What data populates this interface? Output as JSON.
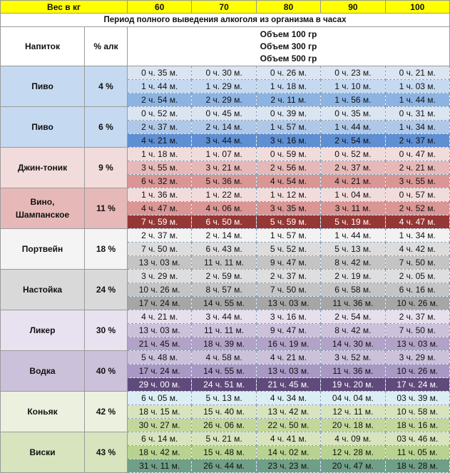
{
  "header": {
    "weight_label": "Вес в кг",
    "weights": [
      "60",
      "70",
      "80",
      "90",
      "100"
    ]
  },
  "title": "Период полного выведения алкоголя из организма в часах",
  "columns": {
    "drink": "Напиток",
    "alcohol": "% алк",
    "volumes": [
      "Объем 100 гр",
      "Объем 300 гр",
      "Объем 500 гр"
    ]
  },
  "rows": [
    {
      "drink": "Пиво",
      "alcohol": "4 %",
      "times": [
        [
          "0 ч. 35 м.",
          "0 ч. 30 м.",
          "0 ч. 26 м.",
          "0 ч. 23 м.",
          "0 ч. 21 м."
        ],
        [
          "1 ч. 44 м.",
          "1 ч. 29 м.",
          "1 ч. 18 м.",
          "1 ч. 10 м.",
          "1 ч. 03 м."
        ],
        [
          "2 ч. 54 м.",
          "2 ч. 29 м.",
          "2 ч. 11 м.",
          "1 ч. 56 м.",
          "1 ч. 44 м."
        ]
      ]
    },
    {
      "drink": "Пиво",
      "alcohol": "6 %",
      "times": [
        [
          "0 ч. 52 м.",
          "0 ч. 45 м.",
          "0 ч. 39 м.",
          "0 ч. 35 м.",
          "0 ч. 31 м."
        ],
        [
          "2 ч. 37 м.",
          "2 ч. 14 м.",
          "1 ч. 57 м.",
          "1 ч. 44 м.",
          "1 ч. 34 м."
        ],
        [
          "4 ч. 21 м.",
          "3 ч. 44 м.",
          "3 ч. 16 м.",
          "2 ч. 54 м.",
          "2 ч. 37 м."
        ]
      ]
    },
    {
      "drink": "Джин-тоник",
      "alcohol": "9 %",
      "times": [
        [
          "1 ч. 18 м.",
          "1 ч. 07 м.",
          "0 ч. 59 м.",
          "0 ч. 52 м.",
          "0 ч. 47 м."
        ],
        [
          "3 ч. 55 м.",
          "3 ч. 21 м.",
          "2 ч. 56 м.",
          "2 ч. 37 м.",
          "2 ч. 21 м."
        ],
        [
          "6 ч. 32 м.",
          "5 ч. 36 м.",
          "4 ч. 54 м.",
          "4 ч. 21 м.",
          "3 ч. 55 м."
        ]
      ]
    },
    {
      "drink": "Вино, Шампанское",
      "alcohol": "11 %",
      "times": [
        [
          "1 ч. 36 м.",
          "1 ч. 22 м.",
          "1 ч. 12 м.",
          "1 ч. 04 м.",
          "0 ч. 57 м."
        ],
        [
          "4 ч. 47 м.",
          "4 ч. 06 м.",
          "3 ч. 35 м.",
          "3 ч. 11 м.",
          "2 ч. 52 м."
        ],
        [
          "7 ч. 59 м.",
          "6 ч. 50 м.",
          "5 ч. 59 м.",
          "5 ч. 19 м.",
          "4 ч. 47 м."
        ]
      ]
    },
    {
      "drink": "Портвейн",
      "alcohol": "18 %",
      "times": [
        [
          "2 ч. 37 м.",
          "2 ч. 14 м.",
          "1 ч. 57 м.",
          "1 ч. 44 м.",
          "1 ч. 34 м."
        ],
        [
          "7 ч. 50 м.",
          "6 ч. 43 м.",
          "5 ч. 52 м.",
          "5 ч. 13 м.",
          "4 ч. 42 м."
        ],
        [
          "13 ч. 03 м.",
          "11 ч. 11 м.",
          "9 ч. 47 м.",
          "8 ч. 42 м.",
          "7 ч. 50 м."
        ]
      ]
    },
    {
      "drink": "Настойка",
      "alcohol": "24 %",
      "times": [
        [
          "3 ч. 29 м.",
          "2 ч. 59 м.",
          "2 ч. 37 м.",
          "2 ч. 19 м.",
          "2 ч. 05 м."
        ],
        [
          "10 ч. 26 м.",
          "8 ч. 57 м.",
          "7 ч. 50 м.",
          "6 ч. 58 м.",
          "6 ч. 16 м."
        ],
        [
          "17 ч. 24 м.",
          "14 ч. 55 м.",
          "13 ч. 03 м.",
          "11 ч. 36 м.",
          "10 ч. 26 м."
        ]
      ]
    },
    {
      "drink": "Ликер",
      "alcohol": "30 %",
      "times": [
        [
          "4 ч. 21 м.",
          "3 ч. 44 м.",
          "3 ч. 16 м.",
          "2 ч. 54 м.",
          "2 ч. 37 м."
        ],
        [
          "13 ч. 03 м.",
          "11 ч. 11 м.",
          "9 ч. 47 м.",
          "8 ч. 42 м.",
          "7 ч. 50 м."
        ],
        [
          "21 ч. 45 м.",
          "18 ч. 39 м.",
          "16 ч. 19 м.",
          "14 ч. 30 м.",
          "13 ч. 03 м."
        ]
      ]
    },
    {
      "drink": "Водка",
      "alcohol": "40 %",
      "times": [
        [
          "5 ч. 48 м.",
          "4 ч. 58 м.",
          "4 ч. 21 м.",
          "3 ч. 52 м.",
          "3 ч. 29 м."
        ],
        [
          "17 ч. 24 м.",
          "14 ч. 55 м.",
          "13 ч. 03 м.",
          "11 ч. 36 м.",
          "10 ч. 26 м."
        ],
        [
          "29 ч. 00 м.",
          "24 ч. 51 м.",
          "21 ч. 45 м.",
          "19 ч. 20 м.",
          "17 ч. 24 м."
        ]
      ]
    },
    {
      "drink": "Коньяк",
      "alcohol": "42 %",
      "times": [
        [
          "6 ч. 05 м.",
          "5 ч. 13 м.",
          "4 ч. 34 м.",
          "04 ч. 04 м.",
          "03 ч. 39 м."
        ],
        [
          "18 ч. 15 м.",
          "15 ч. 40 м.",
          "13 ч. 42 м.",
          "12 ч. 11 м.",
          "10 ч. 58 м."
        ],
        [
          "30 ч. 27 м.",
          "26 ч. 06 м.",
          "22 ч. 50 м.",
          "20 ч. 18 м.",
          "18 ч. 16 м."
        ]
      ]
    },
    {
      "drink": "Виски",
      "alcohol": "43 %",
      "times": [
        [
          "6 ч. 14 м.",
          "5 ч. 21 м.",
          "4 ч. 41 м.",
          "4 ч. 09 м.",
          "03 ч. 46 м."
        ],
        [
          "18 ч. 42 м.",
          "15 ч. 48 м.",
          "14 ч. 02 м.",
          "12 ч. 28 м.",
          "11 ч. 05 м."
        ],
        [
          "31 ч. 11 м.",
          "26 ч. 44 м.",
          "23 ч. 23 м.",
          "20 ч. 47 м.",
          "18 ч. 28 м."
        ]
      ]
    }
  ]
}
